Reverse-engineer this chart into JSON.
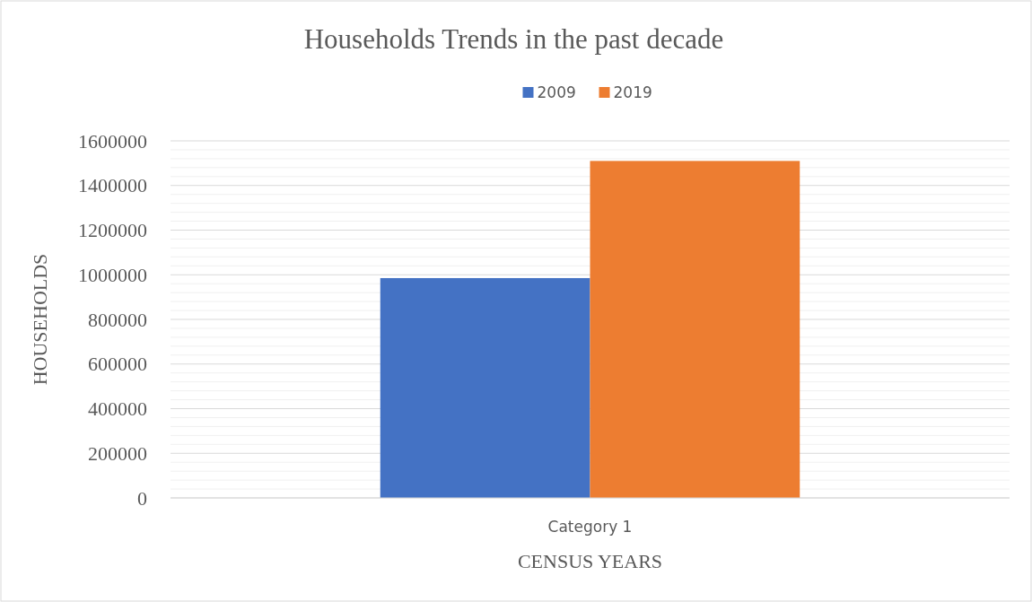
{
  "chart_data": {
    "type": "bar",
    "title": "Households Trends in the past decade",
    "xlabel": "CENSUS YEARS",
    "ylabel": "HOUSEHOLDS",
    "categories": [
      "Category 1"
    ],
    "series": [
      {
        "name": "2009",
        "color": "#4472c4",
        "values": [
          985000
        ]
      },
      {
        "name": "2019",
        "color": "#ed7d31",
        "values": [
          1510000
        ]
      }
    ],
    "ylim": [
      0,
      1600000
    ],
    "yticks": [
      0,
      200000,
      400000,
      600000,
      800000,
      1000000,
      1200000,
      1400000,
      1600000
    ],
    "grid": "y",
    "legend": "top"
  }
}
